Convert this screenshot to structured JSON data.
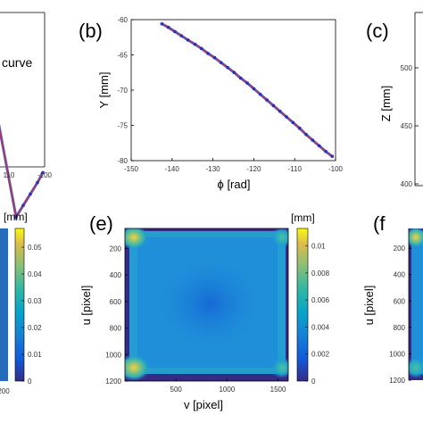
{
  "chart_data": [
    {
      "panel": "a",
      "type": "line",
      "legend": [
        "curve"
      ],
      "xticks": [
        "110",
        "-100"
      ],
      "series": [
        {
          "x": [
            -108,
            -106,
            -104,
            -102,
            -100.5
          ],
          "y": [
            -76.5,
            -77.3,
            -78.1,
            -78.9,
            -79.6
          ]
        }
      ]
    },
    {
      "panel": "b",
      "type": "line",
      "label": "(b)",
      "xlabel": "ϕ [rad]",
      "ylabel": "Y [mm]",
      "xlim": [
        -150,
        -100
      ],
      "ylim": [
        -80,
        -60
      ],
      "xticks": [
        "-150",
        "-140",
        "-130",
        "-120",
        "-110",
        "-100"
      ],
      "yticks": [
        "-60",
        "-65",
        "-70",
        "-75",
        "-80"
      ],
      "series": [
        {
          "x": [
            -142.5,
            -140.9,
            -139.3,
            -137.7,
            -136.1,
            -134.4,
            -132.8,
            -131.2,
            -129.6,
            -128.0,
            -126.4,
            -124.8,
            -123.2,
            -121.6,
            -120.0,
            -118.4,
            -116.8,
            -115.2,
            -113.6,
            -112.0,
            -110.4,
            -108.8,
            -107.2,
            -105.6,
            -104.0,
            -102.4,
            -100.8
          ],
          "y": [
            -60.6,
            -61.1,
            -61.7,
            -62.3,
            -62.9,
            -63.5,
            -64.1,
            -64.8,
            -65.4,
            -66.1,
            -66.8,
            -67.5,
            -68.3,
            -69.0,
            -69.8,
            -70.6,
            -71.4,
            -72.2,
            -73.0,
            -73.8,
            -74.6,
            -75.4,
            -76.3,
            -77.1,
            -77.9,
            -78.7,
            -79.4
          ]
        }
      ]
    },
    {
      "panel": "c",
      "type": "line",
      "label": "(c)",
      "ylabel": "Z [mm]",
      "yticks": [
        "500",
        "450",
        "400"
      ]
    },
    {
      "panel": "d",
      "type": "heatmap",
      "colorbar_label": "[mm]",
      "colorbar_ticks": [
        "0.05",
        "0.04",
        "0.03",
        "0.02",
        "0.01",
        "0"
      ],
      "xticks": [
        "200"
      ]
    },
    {
      "panel": "e",
      "type": "heatmap",
      "label": "(e)",
      "xlabel": "v [pixel]",
      "ylabel": "u [pixel]",
      "colorbar_label": "[mm]",
      "xticks": [
        "500",
        "1000",
        "1500"
      ],
      "yticks": [
        "200",
        "400",
        "600",
        "800",
        "1000",
        "1200"
      ],
      "colorbar_ticks": [
        "0.01",
        "0.008",
        "0.006",
        "0.004",
        "0.002",
        "0"
      ]
    },
    {
      "panel": "f",
      "type": "heatmap",
      "label": "(f",
      "ylabel": "u [pixel]",
      "yticks": [
        "200",
        "400",
        "600",
        "800",
        "1000",
        "1200"
      ]
    }
  ]
}
